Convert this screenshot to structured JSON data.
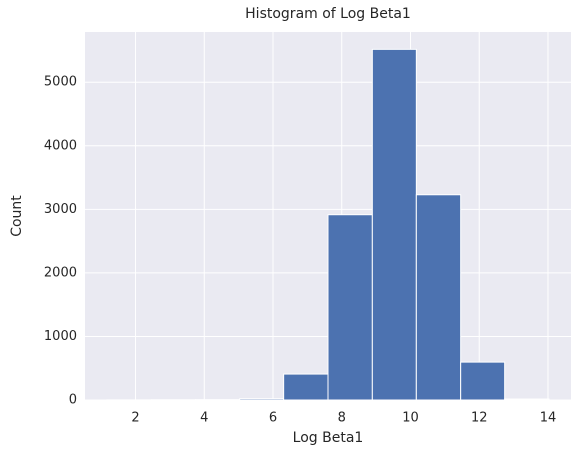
{
  "chart_data": {
    "type": "histogram",
    "title": "Histogram of Log Beta1",
    "x_label": "Log Beta1",
    "y_label": "Count",
    "bins": [
      1.17,
      2.46,
      3.74,
      5.03,
      6.31,
      7.6,
      8.89,
      10.17,
      11.46,
      12.74,
      14.03
    ],
    "values": [
      2,
      4,
      6,
      20,
      408,
      2915,
      5517,
      3229,
      596,
      15
    ],
    "color": "#4c72b0",
    "xlim": [
      0.53,
      14.67
    ],
    "xticks": [
      2,
      4,
      6,
      8,
      10,
      12,
      14
    ],
    "ylim": [
      0,
      5790
    ],
    "yticks": [
      0,
      1000,
      2000,
      3000,
      4000,
      5000
    ],
    "grid": true
  }
}
